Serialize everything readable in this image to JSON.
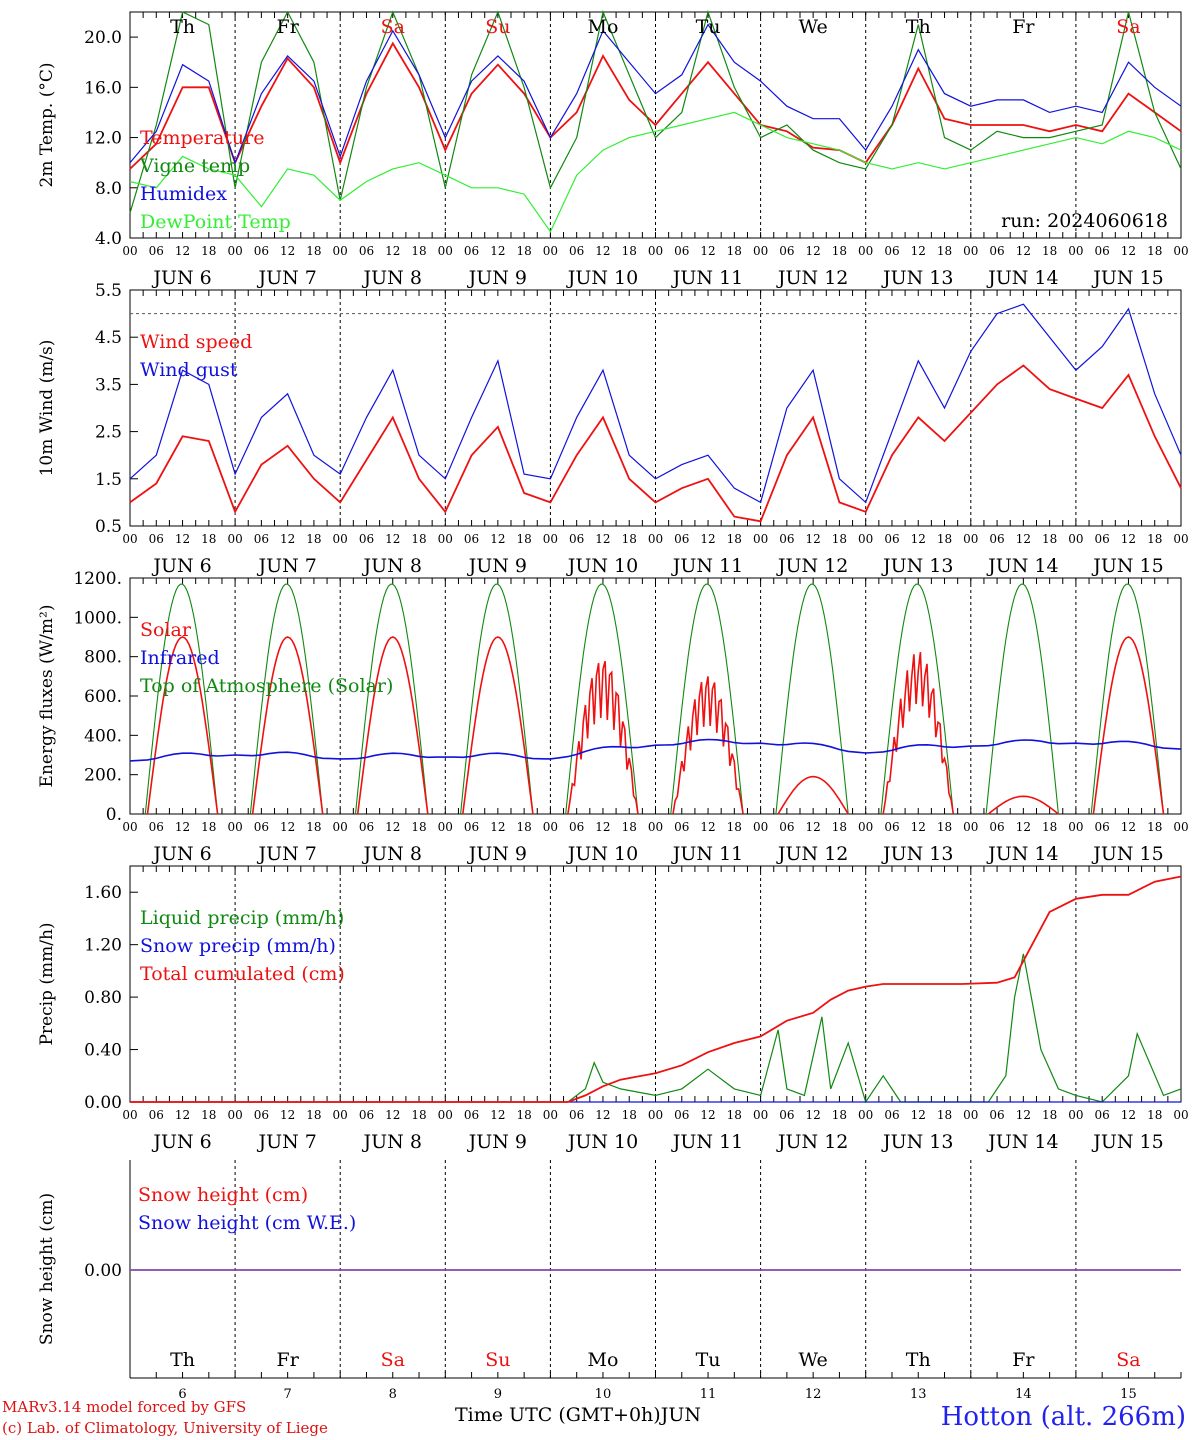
{
  "meta": {
    "run": "run: 2024060618",
    "model": "MARv3.14 model forced by GFS",
    "copyright": "(c) Lab. of Climatology, University of Liege",
    "xaxis_title": "Time UTC (GMT+0h)",
    "month": "JUN",
    "station": "Hotton (alt. 266m)"
  },
  "days": [
    "Th",
    "Fr",
    "Sa",
    "Su",
    "Mo",
    "Tu",
    "We",
    "Th",
    "Fr",
    "Sa"
  ],
  "weekend_days": [
    "Sa",
    "Su"
  ],
  "day_numbers": [
    "6",
    "7",
    "8",
    "9",
    "10",
    "11",
    "12",
    "13",
    "14",
    "15"
  ],
  "date_labels": [
    "JUN  6",
    "JUN  7",
    "JUN  8",
    "JUN  9",
    "JUN 10",
    "JUN 11",
    "JUN 12",
    "JUN 13",
    "JUN 14",
    "JUN 15"
  ],
  "hour_ticks": [
    "00",
    "06",
    "12",
    "18"
  ],
  "colors": {
    "red": "#ee1111",
    "green": "#118811",
    "blue": "#1111dd",
    "lightgreen": "#33ee33",
    "purple": "#8844aa"
  },
  "chart_data": [
    {
      "type": "line",
      "ylabel": "2m Temp. (°C)",
      "ylim": [
        4.0,
        22.0
      ],
      "yticks": [
        4.0,
        8.0,
        12.0,
        16.0,
        20.0
      ],
      "x_unit": "hours since 6 JUN 00 UTC",
      "series": [
        {
          "name": "Temperature",
          "color": "red",
          "x": [
            0,
            6,
            12,
            18,
            24,
            30,
            36,
            42,
            48,
            54,
            60,
            66,
            72,
            78,
            84,
            90,
            96,
            102,
            108,
            114,
            120,
            126,
            132,
            138,
            144,
            150,
            156,
            162,
            168,
            174,
            180,
            186,
            192,
            198,
            204,
            210,
            216,
            222,
            228,
            234,
            240
          ],
          "values": [
            9.5,
            11.5,
            16.0,
            16.0,
            10.0,
            14.5,
            18.3,
            16.0,
            10.0,
            15.5,
            19.5,
            16.0,
            11.0,
            15.5,
            17.8,
            15.5,
            12.0,
            14.0,
            18.5,
            15.0,
            13.0,
            15.5,
            18.0,
            15.5,
            13.0,
            12.5,
            11.2,
            11.0,
            10.0,
            13.0,
            17.5,
            13.5,
            13.0,
            13.0,
            13.0,
            12.5,
            13.0,
            12.5,
            15.5,
            14.0,
            12.5
          ]
        },
        {
          "name": "Vigne temp",
          "color": "green",
          "x": [
            0,
            6,
            12,
            18,
            24,
            30,
            36,
            42,
            48,
            54,
            60,
            66,
            72,
            78,
            84,
            90,
            96,
            102,
            108,
            114,
            120,
            126,
            132,
            138,
            144,
            150,
            156,
            162,
            168,
            174,
            180,
            186,
            192,
            198,
            204,
            210,
            216,
            222,
            228,
            234,
            240
          ],
          "values": [
            6.0,
            13.0,
            22.0,
            21.0,
            8.0,
            18.0,
            22.0,
            18.0,
            7.0,
            16.0,
            22.0,
            17.0,
            8.0,
            17.0,
            22.0,
            16.0,
            8.0,
            12.0,
            22.0,
            17.0,
            12.0,
            14.0,
            22.0,
            16.0,
            12.0,
            13.0,
            11.0,
            10.0,
            9.5,
            13.0,
            21.0,
            12.0,
            11.0,
            12.5,
            12.0,
            12.0,
            12.5,
            13.0,
            22.0,
            14.0,
            9.5
          ]
        },
        {
          "name": "Humidex",
          "color": "blue",
          "x": [
            0,
            6,
            12,
            18,
            24,
            30,
            36,
            42,
            48,
            54,
            60,
            66,
            72,
            78,
            84,
            90,
            96,
            102,
            108,
            114,
            120,
            126,
            132,
            138,
            144,
            150,
            156,
            162,
            168,
            174,
            180,
            186,
            192,
            198,
            204,
            210,
            216,
            222,
            228,
            234,
            240
          ],
          "values": [
            10.0,
            12.5,
            17.8,
            16.5,
            10.0,
            15.5,
            18.5,
            16.5,
            10.5,
            16.5,
            20.5,
            17.0,
            12.0,
            16.5,
            18.5,
            16.5,
            12.0,
            15.5,
            20.5,
            18.0,
            15.5,
            17.0,
            21.0,
            18.0,
            16.5,
            14.5,
            13.5,
            13.5,
            11.0,
            14.5,
            19.0,
            15.5,
            14.5,
            15.0,
            15.0,
            14.0,
            14.5,
            14.0,
            18.0,
            16.0,
            14.5
          ]
        },
        {
          "name": "DewPoint Temp",
          "color": "lightgreen",
          "x": [
            0,
            6,
            12,
            18,
            24,
            30,
            36,
            42,
            48,
            54,
            60,
            66,
            72,
            78,
            84,
            90,
            96,
            102,
            108,
            114,
            120,
            126,
            132,
            138,
            144,
            150,
            156,
            162,
            168,
            174,
            180,
            186,
            192,
            198,
            204,
            210,
            216,
            222,
            228,
            234,
            240
          ],
          "values": [
            8.5,
            8.0,
            10.5,
            9.5,
            9.0,
            6.5,
            9.5,
            9.0,
            7.0,
            8.5,
            9.5,
            10.0,
            9.0,
            8.0,
            8.0,
            7.5,
            4.5,
            9.0,
            11.0,
            12.0,
            12.5,
            13.0,
            13.5,
            14.0,
            13.0,
            12.0,
            11.5,
            11.0,
            10.0,
            9.5,
            10.0,
            9.5,
            10.0,
            10.5,
            11.0,
            11.5,
            12.0,
            11.5,
            12.5,
            12.0,
            11.0
          ]
        }
      ]
    },
    {
      "type": "line",
      "ylabel": "10m Wind (m/s)",
      "ylim": [
        0.5,
        5.5
      ],
      "yticks": [
        0.5,
        1.5,
        2.5,
        3.5,
        4.5,
        5.5
      ],
      "x_unit": "hours since 6 JUN 00 UTC",
      "series": [
        {
          "name": "Wind speed",
          "color": "red",
          "x": [
            0,
            6,
            12,
            18,
            24,
            30,
            36,
            42,
            48,
            54,
            60,
            66,
            72,
            78,
            84,
            90,
            96,
            102,
            108,
            114,
            120,
            126,
            132,
            138,
            144,
            150,
            156,
            162,
            168,
            174,
            180,
            186,
            192,
            198,
            204,
            210,
            216,
            222,
            228,
            234,
            240
          ],
          "values": [
            1.0,
            1.4,
            2.4,
            2.3,
            0.8,
            1.8,
            2.2,
            1.5,
            1.0,
            1.9,
            2.8,
            1.5,
            0.8,
            2.0,
            2.6,
            1.2,
            1.0,
            2.0,
            2.8,
            1.5,
            1.0,
            1.3,
            1.5,
            0.7,
            0.6,
            2.0,
            2.8,
            1.0,
            0.8,
            2.0,
            2.8,
            2.3,
            2.9,
            3.5,
            3.9,
            3.4,
            3.2,
            3.0,
            3.7,
            2.4,
            1.3
          ]
        },
        {
          "name": "Wind gust",
          "color": "blue",
          "x": [
            0,
            6,
            12,
            18,
            24,
            30,
            36,
            42,
            48,
            54,
            60,
            66,
            72,
            78,
            84,
            90,
            96,
            102,
            108,
            114,
            120,
            126,
            132,
            138,
            144,
            150,
            156,
            162,
            168,
            174,
            180,
            186,
            192,
            198,
            204,
            210,
            216,
            222,
            228,
            234,
            240
          ],
          "values": [
            1.5,
            2.0,
            3.8,
            3.5,
            1.6,
            2.8,
            3.3,
            2.0,
            1.6,
            2.8,
            3.8,
            2.0,
            1.5,
            2.8,
            4.0,
            1.6,
            1.5,
            2.8,
            3.8,
            2.0,
            1.5,
            1.8,
            2.0,
            1.3,
            1.0,
            3.0,
            3.8,
            1.5,
            1.0,
            2.5,
            4.0,
            3.0,
            4.2,
            5.0,
            5.2,
            4.5,
            3.8,
            4.3,
            5.1,
            3.3,
            2.0
          ]
        }
      ]
    },
    {
      "type": "line",
      "ylabel": "Energy fluxes (W/m²)",
      "ylim": [
        0,
        1200
      ],
      "yticks": [
        "0.",
        "200.",
        "400.",
        "600.",
        "800.",
        "1000.",
        "1200."
      ],
      "x_unit": "hours since 6 JUN 00 UTC",
      "series": [
        {
          "name": "Solar",
          "color": "red",
          "peaks": [
            900,
            900,
            900,
            900,
            810,
            720,
            190,
            840,
            90,
            900
          ]
        },
        {
          "name": "Infrared",
          "color": "blue",
          "x": [
            0,
            24,
            48,
            72,
            96,
            120,
            144,
            168,
            192,
            216,
            240
          ],
          "values": [
            270,
            300,
            280,
            290,
            280,
            350,
            360,
            310,
            345,
            360,
            330
          ]
        },
        {
          "name": "Top of Atmosphere (Solar)",
          "color": "green",
          "peak": 1170,
          "sunrise_h": 3.5,
          "sunset_h": 20.0
        }
      ]
    },
    {
      "type": "line",
      "ylabel": "Precip (mm/h)",
      "ylim": [
        0,
        1.8
      ],
      "yticks": [
        0.0,
        0.4,
        0.8,
        1.2,
        1.6
      ],
      "x_unit": "hours since 6 JUN 00 UTC",
      "series": [
        {
          "name": "Liquid precip (mm/h)",
          "color": "green",
          "x": [
            0,
            100,
            104,
            106,
            108,
            112,
            120,
            126,
            132,
            138,
            144,
            148,
            150,
            154,
            158,
            160,
            164,
            168,
            172,
            176,
            180,
            196,
            200,
            202,
            204,
            208,
            212,
            216,
            222,
            228,
            230,
            236,
            240
          ],
          "values": [
            0,
            0,
            0.1,
            0.3,
            0.15,
            0.1,
            0.05,
            0.1,
            0.25,
            0.1,
            0.05,
            0.55,
            0.1,
            0.05,
            0.65,
            0.1,
            0.45,
            0,
            0.2,
            0,
            0,
            0,
            0.2,
            0.8,
            1.13,
            0.4,
            0.1,
            0.05,
            0.0,
            0.2,
            0.52,
            0.05,
            0.1
          ]
        },
        {
          "name": "Snow precip (mm/h)",
          "color": "blue",
          "x": [
            0,
            240
          ],
          "values": [
            0,
            0
          ]
        },
        {
          "name": "Total cumulated (cm)",
          "color": "red",
          "x": [
            0,
            100,
            104,
            108,
            112,
            120,
            126,
            132,
            138,
            144,
            150,
            156,
            160,
            164,
            168,
            172,
            180,
            190,
            198,
            202,
            206,
            210,
            216,
            222,
            228,
            234,
            240
          ],
          "values": [
            0,
            0,
            0.05,
            0.12,
            0.17,
            0.22,
            0.28,
            0.38,
            0.45,
            0.5,
            0.62,
            0.68,
            0.78,
            0.85,
            0.88,
            0.9,
            0.9,
            0.9,
            0.91,
            0.95,
            1.2,
            1.45,
            1.55,
            1.58,
            1.58,
            1.68,
            1.72
          ]
        }
      ]
    },
    {
      "type": "line",
      "ylabel": "Snow height (cm)",
      "yticks": [
        0.0
      ],
      "x_unit": "hours since 6 JUN 00 UTC",
      "series": [
        {
          "name": "Snow height (cm)",
          "color": "red",
          "x": [
            0,
            240
          ],
          "values": [
            0,
            0
          ]
        },
        {
          "name": "Snow height (cm W.E.)",
          "color": "blue",
          "x": [
            0,
            240
          ],
          "values": [
            0,
            0
          ]
        }
      ]
    }
  ]
}
